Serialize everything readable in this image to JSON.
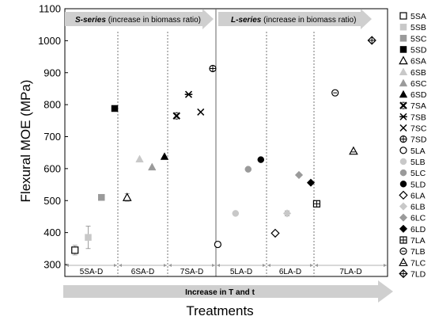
{
  "chart_data": {
    "type": "scatter",
    "title": "",
    "xlabel": "Treatments",
    "ylabel": "Flexural MOE (MPa)",
    "ylim": [
      300,
      1100
    ],
    "yticks": [
      300,
      400,
      500,
      600,
      700,
      800,
      900,
      1000,
      1100
    ],
    "grid": false,
    "legend_position": "right",
    "x_arrow_label": "Increase in T and t",
    "banners": [
      {
        "series_label": "S-series",
        "rest": " (increase in biomass ratio)"
      },
      {
        "series_label": "L-series",
        "rest": " (increase in biomass ratio)"
      }
    ],
    "groups": [
      "5SA-D",
      "6SA-D",
      "7SA-D",
      "5LA-D",
      "6LA-D",
      "7LA-D"
    ],
    "series": [
      {
        "name": "5SA",
        "group": 0,
        "pos": 0.25,
        "value": 345,
        "err": 15,
        "marker": "square-open",
        "color": "#000000"
      },
      {
        "name": "5SB",
        "group": 0,
        "pos": 0.5,
        "value": 385,
        "err": 35,
        "marker": "square",
        "color": "#c8c8c8"
      },
      {
        "name": "5SC",
        "group": 0,
        "pos": 0.75,
        "value": 510,
        "err": 0,
        "marker": "square",
        "color": "#9a9a9a"
      },
      {
        "name": "5SD",
        "group": 0,
        "pos": 1.0,
        "value": 788,
        "err": 0,
        "marker": "square",
        "color": "#000000"
      },
      {
        "name": "6SA",
        "group": 1,
        "pos": 0.25,
        "value": 510,
        "err": 12,
        "marker": "triangle-open",
        "color": "#000000"
      },
      {
        "name": "6SB",
        "group": 1,
        "pos": 0.5,
        "value": 630,
        "err": 0,
        "marker": "triangle",
        "color": "#c8c8c8"
      },
      {
        "name": "6SC",
        "group": 1,
        "pos": 0.75,
        "value": 605,
        "err": 0,
        "marker": "triangle",
        "color": "#9a9a9a"
      },
      {
        "name": "6SD",
        "group": 1,
        "pos": 1.0,
        "value": 638,
        "err": 0,
        "marker": "triangle",
        "color": "#000000"
      },
      {
        "name": "7SA",
        "group": 2,
        "pos": 0.25,
        "value": 765,
        "err": 0,
        "marker": "hatch-x",
        "color": "#000000"
      },
      {
        "name": "7SB",
        "group": 2,
        "pos": 0.5,
        "value": 832,
        "err": 0,
        "marker": "asterisk",
        "color": "#000000"
      },
      {
        "name": "7SC",
        "group": 2,
        "pos": 0.75,
        "value": 777,
        "err": 0,
        "marker": "x",
        "color": "#000000"
      },
      {
        "name": "7SD",
        "group": 2,
        "pos": 1.0,
        "value": 913,
        "err": 0,
        "marker": "circle-plus",
        "color": "#000000"
      },
      {
        "name": "5LA",
        "group": 3,
        "pos": 0.1,
        "value": 363,
        "err": 0,
        "marker": "circle-open",
        "color": "#000000"
      },
      {
        "name": "5LB",
        "group": 3,
        "pos": 0.45,
        "value": 460,
        "err": 0,
        "marker": "circle",
        "color": "#c8c8c8"
      },
      {
        "name": "5LC",
        "group": 3,
        "pos": 0.7,
        "value": 598,
        "err": 0,
        "marker": "circle",
        "color": "#9a9a9a"
      },
      {
        "name": "5LD",
        "group": 3,
        "pos": 0.95,
        "value": 628,
        "err": 0,
        "marker": "circle",
        "color": "#000000"
      },
      {
        "name": "6LA",
        "group": 4,
        "pos": 0.25,
        "value": 398,
        "err": 0,
        "marker": "diamond-open",
        "color": "#000000"
      },
      {
        "name": "6LB",
        "group": 4,
        "pos": 0.5,
        "value": 460,
        "err": 8,
        "marker": "diamond",
        "color": "#c8c8c8"
      },
      {
        "name": "6LC",
        "group": 4,
        "pos": 0.75,
        "value": 580,
        "err": 0,
        "marker": "diamond",
        "color": "#9a9a9a"
      },
      {
        "name": "6LD",
        "group": 4,
        "pos": 1.0,
        "value": 556,
        "err": 0,
        "marker": "diamond",
        "color": "#000000"
      },
      {
        "name": "7LA",
        "group": 5,
        "pos": 0.08,
        "value": 490,
        "err": 0,
        "marker": "square-plus",
        "color": "#000000"
      },
      {
        "name": "7LB",
        "group": 5,
        "pos": 0.33,
        "value": 837,
        "err": 0,
        "marker": "circle-dot",
        "color": "#000000"
      },
      {
        "name": "7LC",
        "group": 5,
        "pos": 0.58,
        "value": 655,
        "err": 0,
        "marker": "triangle-line",
        "color": "#000000"
      },
      {
        "name": "7LD",
        "group": 5,
        "pos": 0.83,
        "value": 1001,
        "err": 0,
        "marker": "diamond-plus",
        "color": "#000000"
      }
    ]
  }
}
